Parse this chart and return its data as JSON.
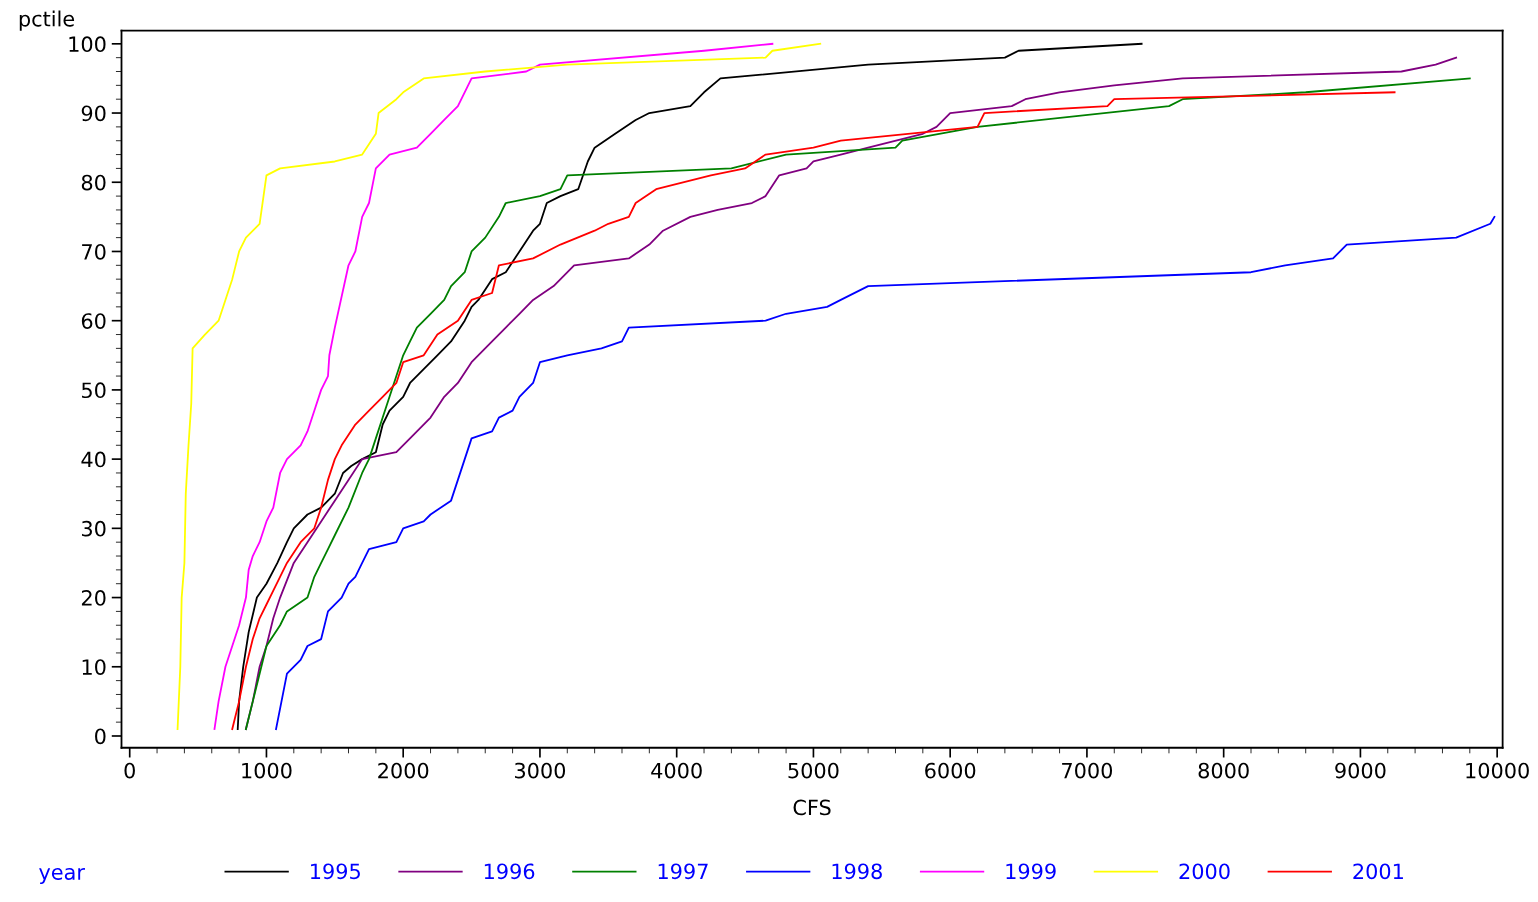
{
  "chart_data": {
    "type": "line",
    "ylabel": "pctile",
    "xlabel": "CFS",
    "legend_title": "year",
    "legend": "bottom",
    "grid": false,
    "marker": "none",
    "line_style": "solid",
    "xlim": [
      -60,
      10040
    ],
    "ylim": [
      -1.7,
      101.9
    ],
    "xticks": [
      0,
      1000,
      2000,
      3000,
      4000,
      5000,
      6000,
      7000,
      8000,
      9000,
      10000
    ],
    "yticks": [
      0,
      10,
      20,
      30,
      40,
      50,
      60,
      70,
      80,
      90,
      100
    ],
    "series": [
      {
        "name": "1995",
        "color": "#000000",
        "x": [
          790,
          800,
          830,
          870,
          930,
          1000,
          1080,
          1150,
          1200,
          1300,
          1400,
          1500,
          1560,
          1620,
          1700,
          1800,
          1850,
          1900,
          2000,
          2050,
          2150,
          2250,
          2350,
          2450,
          2500,
          2550,
          2650,
          2750,
          2850,
          2950,
          3000,
          3050,
          3150,
          3280,
          3350,
          3400,
          3550,
          3700,
          3800,
          4100,
          4200,
          4320,
          5400,
          6400,
          6500,
          7400
        ],
        "values": [
          1,
          5,
          10,
          15,
          20,
          22,
          25,
          28,
          30,
          32,
          33,
          35,
          38,
          39,
          40,
          41,
          45,
          47,
          49,
          51,
          53,
          55,
          57,
          60,
          62,
          63,
          66,
          67,
          70,
          73,
          74,
          77,
          78,
          79,
          83,
          85,
          87,
          89,
          90,
          91,
          93,
          95,
          97,
          98,
          99,
          100
        ]
      },
      {
        "name": "1996",
        "color": "#800080",
        "x": [
          850,
          900,
          950,
          1000,
          1050,
          1100,
          1200,
          1300,
          1400,
          1500,
          1600,
          1700,
          1950,
          2050,
          2200,
          2300,
          2400,
          2500,
          2650,
          2750,
          2850,
          2950,
          3100,
          3250,
          3650,
          3800,
          3900,
          4100,
          4300,
          4550,
          4650,
          4750,
          4950,
          5000,
          5200,
          5400,
          5800,
          5900,
          6000,
          6450,
          6550,
          6800,
          7200,
          7700,
          9300,
          9550,
          9700
        ],
        "values": [
          1,
          5,
          10,
          13,
          17,
          20,
          25,
          28,
          31,
          34,
          37,
          40,
          41,
          43,
          46,
          49,
          51,
          54,
          57,
          59,
          61,
          63,
          65,
          68,
          69,
          71,
          73,
          75,
          76,
          77,
          78,
          81,
          82,
          83,
          84,
          85,
          87,
          88,
          90,
          91,
          92,
          93,
          94,
          95,
          96,
          97,
          98
        ]
      },
      {
        "name": "1997",
        "color": "#008000",
        "x": [
          850,
          900,
          950,
          1000,
          1100,
          1150,
          1300,
          1350,
          1400,
          1450,
          1500,
          1600,
          1700,
          1750,
          1800,
          1850,
          1900,
          1950,
          2000,
          2050,
          2100,
          2200,
          2300,
          2350,
          2450,
          2500,
          2600,
          2700,
          2750,
          3000,
          3150,
          3200,
          4400,
          4800,
          5600,
          5650,
          6200,
          7600,
          7700,
          8600,
          9800
        ],
        "values": [
          1,
          5,
          9,
          13,
          16,
          18,
          20,
          23,
          25,
          27,
          29,
          33,
          38,
          40,
          43,
          46,
          49,
          52,
          55,
          57,
          59,
          61,
          63,
          65,
          67,
          70,
          72,
          75,
          77,
          78,
          79,
          81,
          82,
          84,
          85,
          86,
          88,
          91,
          92,
          93,
          95
        ]
      },
      {
        "name": "1998",
        "color": "#0000ff",
        "x": [
          1070,
          1150,
          1250,
          1300,
          1400,
          1450,
          1550,
          1600,
          1650,
          1700,
          1750,
          1950,
          2000,
          2150,
          2200,
          2350,
          2400,
          2450,
          2500,
          2650,
          2700,
          2800,
          2850,
          2950,
          3000,
          3200,
          3450,
          3600,
          3650,
          4650,
          4800,
          5100,
          5200,
          5400,
          8200,
          8450,
          8800,
          8900,
          9700,
          9950,
          9980
        ],
        "values": [
          1,
          9,
          11,
          13,
          14,
          18,
          20,
          22,
          23,
          25,
          27,
          28,
          30,
          31,
          32,
          34,
          37,
          40,
          43,
          44,
          46,
          47,
          49,
          51,
          54,
          55,
          56,
          57,
          59,
          60,
          61,
          62,
          63,
          65,
          67,
          68,
          69,
          71,
          72,
          74,
          75
        ]
      },
      {
        "name": "1999",
        "color": "#ff00ff",
        "x": [
          620,
          650,
          700,
          750,
          800,
          850,
          870,
          900,
          950,
          1000,
          1050,
          1100,
          1150,
          1250,
          1300,
          1350,
          1400,
          1450,
          1460,
          1500,
          1600,
          1650,
          1700,
          1750,
          1800,
          1900,
          2100,
          2200,
          2300,
          2400,
          2500,
          2900,
          3000,
          4200,
          4700
        ],
        "values": [
          1,
          5,
          10,
          13,
          16,
          20,
          24,
          26,
          28,
          31,
          33,
          38,
          40,
          42,
          44,
          47,
          50,
          52,
          55,
          59,
          68,
          70,
          75,
          77,
          82,
          84,
          85,
          87,
          89,
          91,
          95,
          96,
          97,
          99,
          100
        ]
      },
      {
        "name": "2000",
        "color": "#ffff00",
        "x": [
          350,
          370,
          380,
          400,
          410,
          430,
          450,
          460,
          550,
          650,
          700,
          750,
          800,
          850,
          950,
          1000,
          1100,
          1500,
          1700,
          1800,
          1820,
          1950,
          2000,
          2150,
          2600,
          3200,
          4650,
          4700,
          5050
        ],
        "values": [
          1,
          10,
          20,
          25,
          35,
          42,
          48,
          56,
          58,
          60,
          63,
          66,
          70,
          72,
          74,
          81,
          82,
          83,
          84,
          87,
          90,
          92,
          93,
          95,
          96,
          97,
          98,
          99,
          100
        ]
      },
      {
        "name": "2001",
        "color": "#ff0000",
        "x": [
          750,
          800,
          850,
          900,
          950,
          1000,
          1050,
          1150,
          1250,
          1350,
          1400,
          1450,
          1500,
          1550,
          1650,
          1750,
          1850,
          1950,
          2000,
          2150,
          2250,
          2400,
          2500,
          2650,
          2700,
          2950,
          3150,
          3400,
          3500,
          3650,
          3700,
          3850,
          4250,
          4500,
          4650,
          5000,
          5200,
          6200,
          6250,
          7150,
          7200,
          9250
        ],
        "values": [
          1,
          5,
          10,
          14,
          17,
          19,
          21,
          25,
          28,
          30,
          33,
          37,
          40,
          42,
          45,
          47,
          49,
          51,
          54,
          55,
          58,
          60,
          63,
          64,
          68,
          69,
          71,
          73,
          74,
          75,
          77,
          79,
          81,
          82,
          84,
          85,
          86,
          88,
          90,
          91,
          92,
          93
        ]
      }
    ]
  }
}
